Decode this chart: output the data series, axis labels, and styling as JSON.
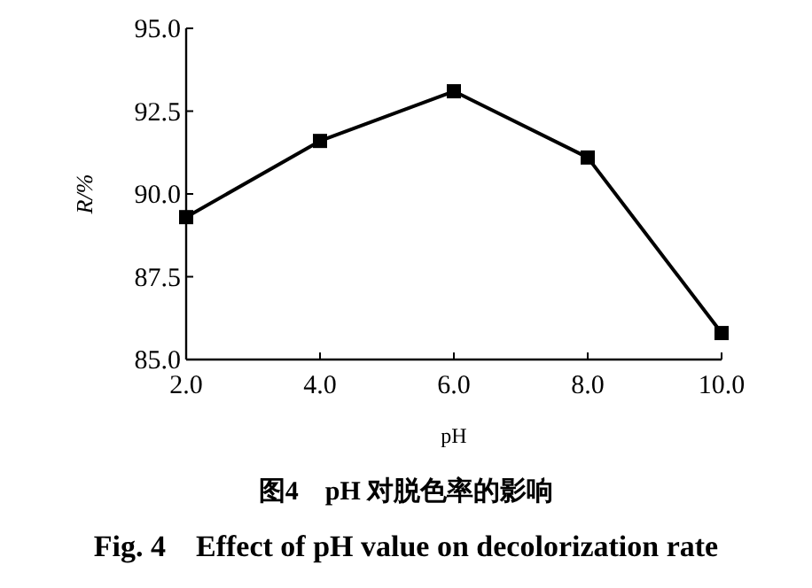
{
  "chart_data": {
    "type": "line",
    "title": "图4　pH 对脱色率的影响",
    "subtitle": "Fig. 4　Effect of pH value on decolorization rate",
    "xlabel": "pH",
    "ylabel": "R/%",
    "x": [
      2,
      4,
      6,
      8,
      10
    ],
    "series": [
      {
        "color": "#000000",
        "values": [
          89.3,
          91.6,
          93.1,
          91.1,
          85.8
        ]
      }
    ],
    "xlim": [
      2,
      10
    ],
    "ylim": [
      85,
      95
    ],
    "xticks": [
      {
        "value": 2,
        "label": "2.0"
      },
      {
        "value": 4,
        "label": "4.0"
      },
      {
        "value": 6,
        "label": "6.0"
      },
      {
        "value": 8,
        "label": "8.0"
      },
      {
        "value": 10,
        "label": "10.0"
      }
    ],
    "yticks": [
      {
        "value": 85,
        "label": "85.0"
      },
      {
        "value": 87.5,
        "label": "87.5"
      },
      {
        "value": 90,
        "label": "90.0"
      },
      {
        "value": 92.5,
        "label": "92.5"
      },
      {
        "value": 95,
        "label": "95.0"
      }
    ],
    "marker": "square",
    "line_style": "solid",
    "grid": false
  }
}
